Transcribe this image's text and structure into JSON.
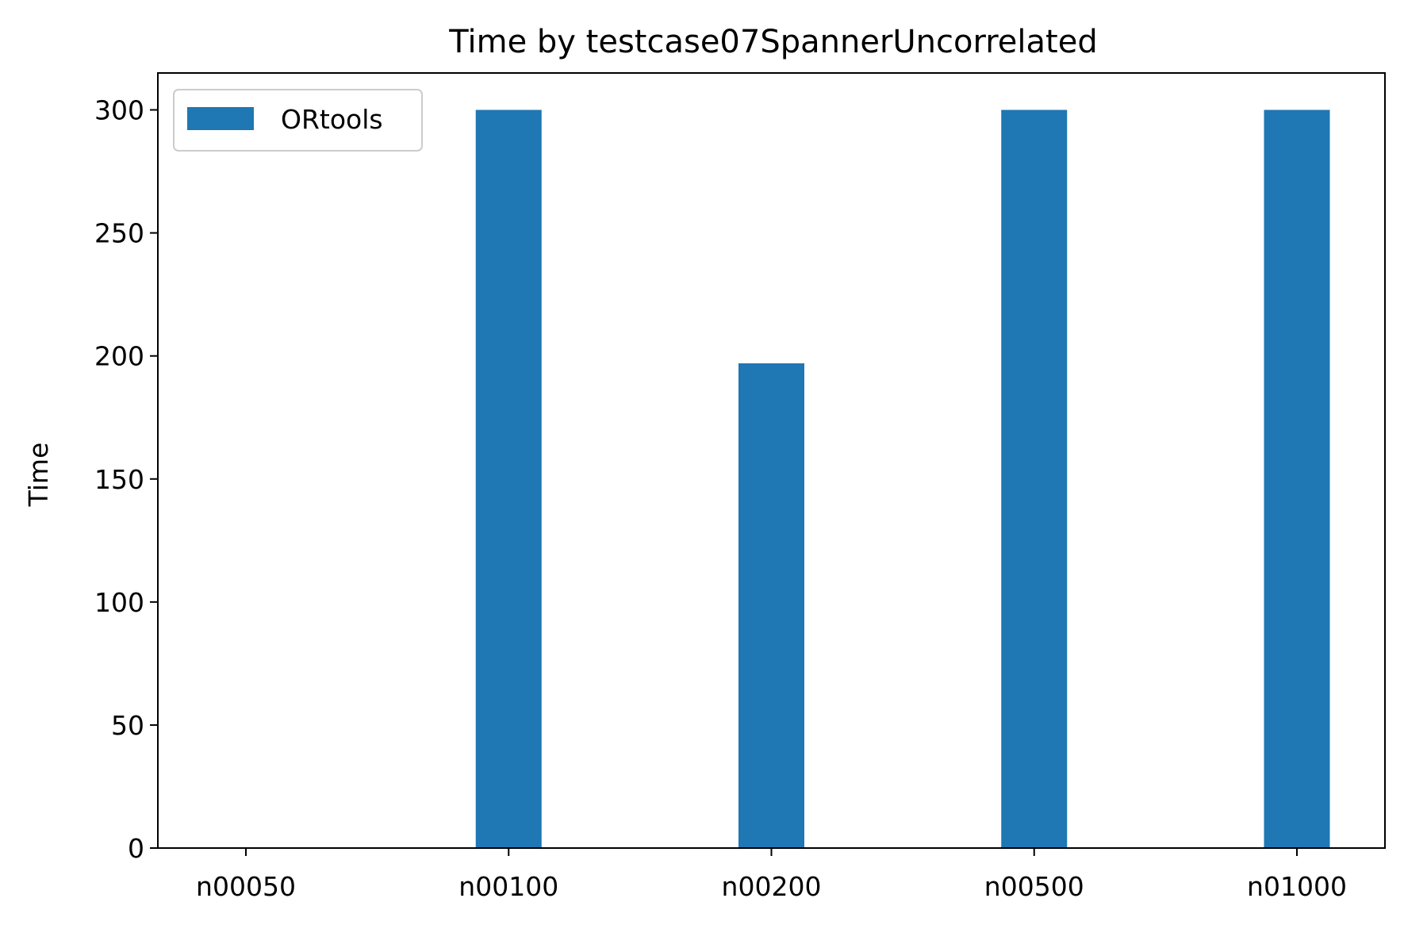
{
  "chart_data": {
    "type": "bar",
    "title": "Time by testcase07SpannerUncorrelated",
    "xlabel": "",
    "ylabel": "Time",
    "categories": [
      "n00050",
      "n00100",
      "n00200",
      "n00500",
      "n01000"
    ],
    "series": [
      {
        "name": "ORtools",
        "values": [
          0,
          300,
          197,
          300,
          300
        ],
        "color": "#1f77b4"
      }
    ],
    "ylim": [
      0,
      315
    ],
    "yticks": [
      0,
      50,
      100,
      150,
      200,
      250,
      300
    ],
    "grid": false,
    "legend_position": "upper-left"
  }
}
